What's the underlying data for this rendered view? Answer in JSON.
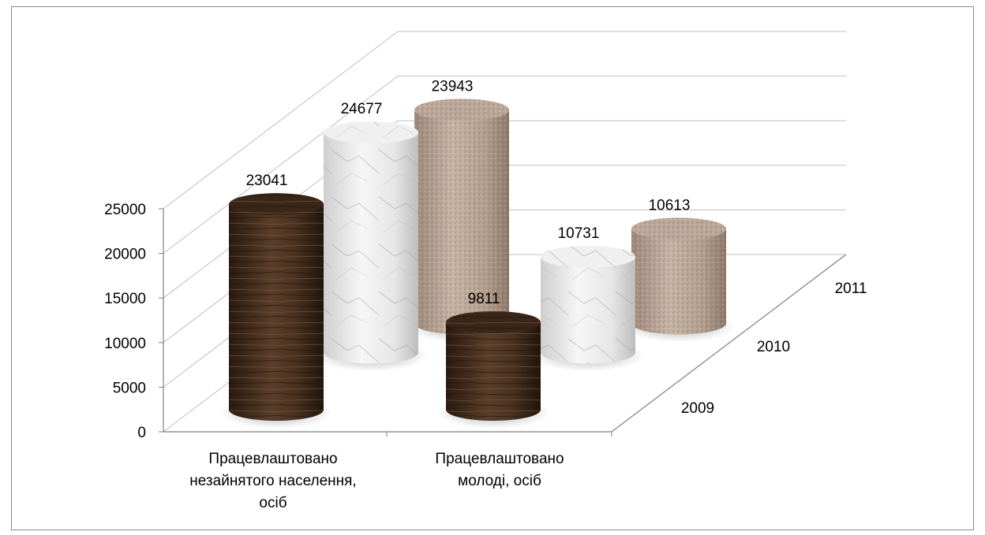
{
  "chart_data": {
    "type": "bar",
    "subtype": "3d-cylinder",
    "title": "",
    "xlabel": "",
    "ylabel": "",
    "ylim": [
      0,
      25000
    ],
    "yticks": [
      "0",
      "5000",
      "10000",
      "15000",
      "20000",
      "25000"
    ],
    "categories": [
      [
        "Працевлаштовано",
        "незайнятого населення,",
        "осіб"
      ],
      [
        "Працевлаштовано",
        "молоді, осіб"
      ]
    ],
    "series": [
      {
        "name": "2009",
        "values": [
          23041,
          9811
        ]
      },
      {
        "name": "2010",
        "values": [
          24677,
          10731
        ]
      },
      {
        "name": "2011",
        "values": [
          23943,
          10613
        ]
      }
    ],
    "legend": "depth-axis-right",
    "grid": true,
    "colors": {
      "2009": "#3e2a1c",
      "2010": "#e4e4e4",
      "2011": "#b6a292"
    }
  }
}
